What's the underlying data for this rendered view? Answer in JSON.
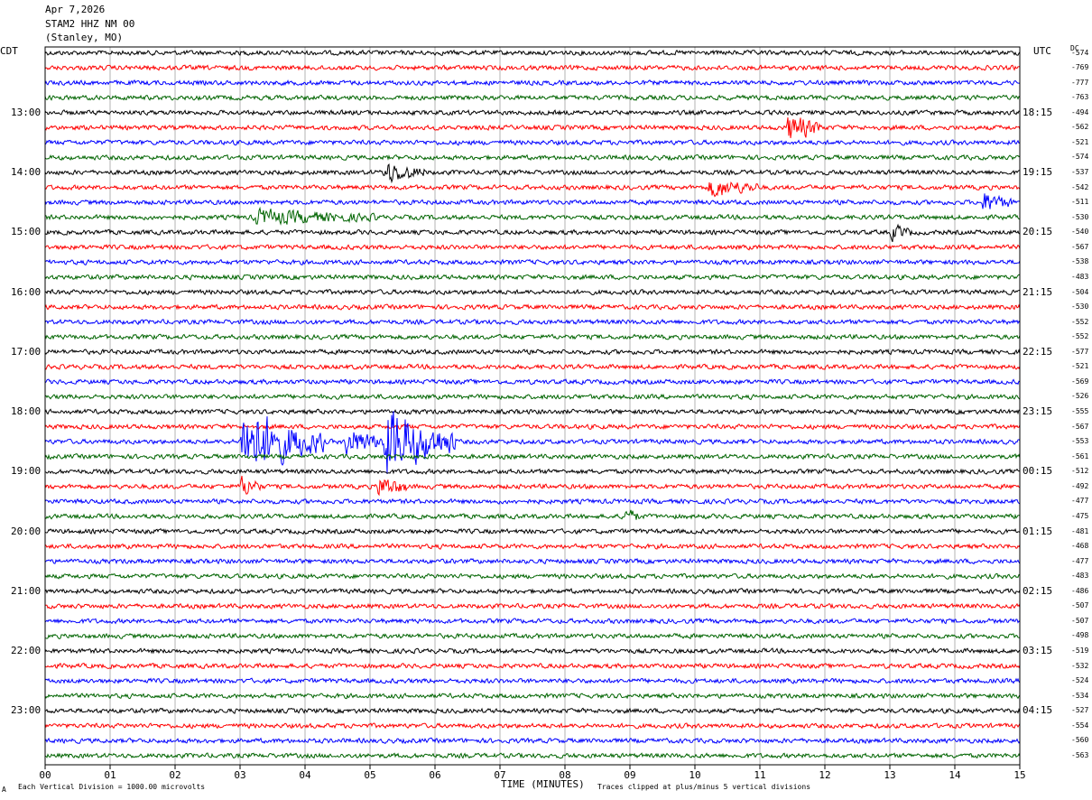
{
  "header": {
    "date": "Apr 7,2026",
    "station": "STAM2 HHZ NM 00",
    "location": "(Stanley, MO)"
  },
  "left_zone": "CDT",
  "right_zone": "UTC",
  "dc_label": "DC",
  "x_axis_title": "TIME (MINUTES)",
  "footer_left": "Each Vertical Division = 1000.00 microvolts",
  "footer_right": "Traces clipped at plus/minus 5 vertical divisions",
  "footer_mark": "A",
  "colors": {
    "trace_cycle": [
      "#000000",
      "#ff0000",
      "#0000ff",
      "#006400"
    ],
    "grid": "#808080",
    "frame": "#000000"
  },
  "chart_data": {
    "type": "seismogram",
    "traces_per_row_minutes": 15,
    "xlim": [
      0,
      15
    ],
    "x_ticks": [
      "00",
      "01",
      "02",
      "03",
      "04",
      "05",
      "06",
      "07",
      "08",
      "09",
      "10",
      "11",
      "12",
      "13",
      "14",
      "15"
    ],
    "left_hour_labels": [
      "13:00",
      "14:00",
      "15:00",
      "16:00",
      "17:00",
      "18:00",
      "19:00",
      "20:00",
      "21:00",
      "22:00",
      "23:00"
    ],
    "right_hour_labels": [
      "18:15",
      "19:15",
      "20:15",
      "21:15",
      "22:15",
      "23:15",
      "00:15",
      "01:15",
      "02:15",
      "03:15",
      "04:15"
    ],
    "dc_offsets": [
      "-574",
      "-769",
      "-777",
      "-763",
      "-494",
      "-562",
      "-521",
      "-574",
      "-537",
      "-542",
      "-511",
      "-530",
      "-540",
      "-567",
      "-538",
      "-483",
      "-504",
      "-530",
      "-552",
      "-552",
      "-577",
      "-521",
      "-569",
      "-526",
      "-555",
      "-567",
      "-553",
      "-561",
      "-512",
      "-492",
      "-477",
      "-475",
      "-481",
      "-468",
      "-477",
      "-483",
      "-486",
      "-507",
      "-507",
      "-498",
      "-519",
      "-532",
      "-524",
      "-534",
      "-527",
      "-554",
      "-560",
      "-563"
    ],
    "events": [
      {
        "trace": 5,
        "minute": 11.4,
        "amp": 2.5,
        "dur": 0.35
      },
      {
        "trace": 8,
        "minute": 5.2,
        "amp": 1.8,
        "dur": 0.4
      },
      {
        "trace": 9,
        "minute": 10.2,
        "amp": 1.6,
        "dur": 0.5
      },
      {
        "trace": 10,
        "minute": 14.4,
        "amp": 1.8,
        "dur": 0.3
      },
      {
        "trace": 11,
        "minute": 3.2,
        "amp": 1.1,
        "dur": 1.2
      },
      {
        "trace": 12,
        "minute": 13.0,
        "amp": 1.4,
        "dur": 0.2
      },
      {
        "trace": 26,
        "minute": 3.0,
        "amp": 6.0,
        "dur": 0.8
      },
      {
        "trace": 26,
        "minute": 4.6,
        "amp": 2.5,
        "dur": 0.4
      },
      {
        "trace": 26,
        "minute": 5.2,
        "amp": 6.0,
        "dur": 0.7
      },
      {
        "trace": 29,
        "minute": 3.0,
        "amp": 2.0,
        "dur": 0.2
      },
      {
        "trace": 29,
        "minute": 5.1,
        "amp": 2.0,
        "dur": 0.3
      },
      {
        "trace": 31,
        "minute": 8.9,
        "amp": 1.6,
        "dur": 0.15
      }
    ]
  }
}
